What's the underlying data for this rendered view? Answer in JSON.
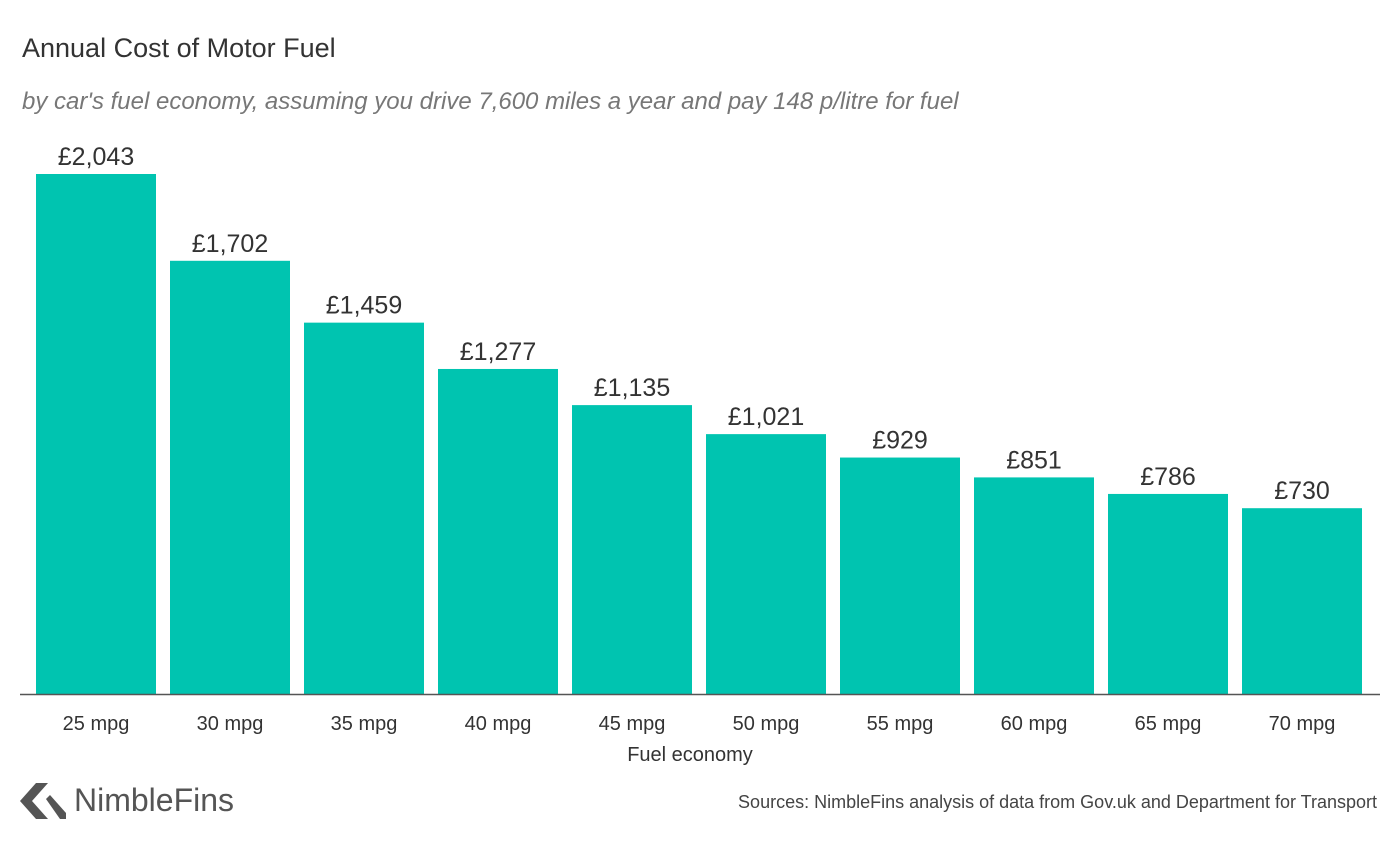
{
  "header": {
    "title": "Annual Cost of Motor Fuel",
    "subtitle": "by car's fuel economy, assuming you drive 7,600 miles a year and pay 148 p/litre for fuel"
  },
  "footer": {
    "brand": "NimbleFins",
    "source": "Sources: NimbleFins analysis of data from Gov.uk and Department for Transport"
  },
  "colors": {
    "bar": "#00c4b0",
    "axis": "#555555",
    "text": "#333333",
    "logo": "#555555"
  },
  "chart_data": {
    "type": "bar",
    "title": "Annual Cost of Motor Fuel",
    "subtitle": "by car's fuel economy, assuming you drive 7,600 miles a year and pay 148 p/litre for fuel",
    "xlabel": "Fuel economy",
    "ylabel": "",
    "categories": [
      "25 mpg",
      "30 mpg",
      "35 mpg",
      "40 mpg",
      "45 mpg",
      "50 mpg",
      "55 mpg",
      "60 mpg",
      "65 mpg",
      "70 mpg"
    ],
    "values": [
      2043,
      1702,
      1459,
      1277,
      1135,
      1021,
      929,
      851,
      786,
      730
    ],
    "value_labels": [
      "£2,043",
      "£1,702",
      "£1,459",
      "£1,277",
      "£1,135",
      "£1,021",
      "£929",
      "£851",
      "£786",
      "£730"
    ],
    "ylim": [
      0,
      2043
    ],
    "grid": false,
    "legend": "none"
  }
}
